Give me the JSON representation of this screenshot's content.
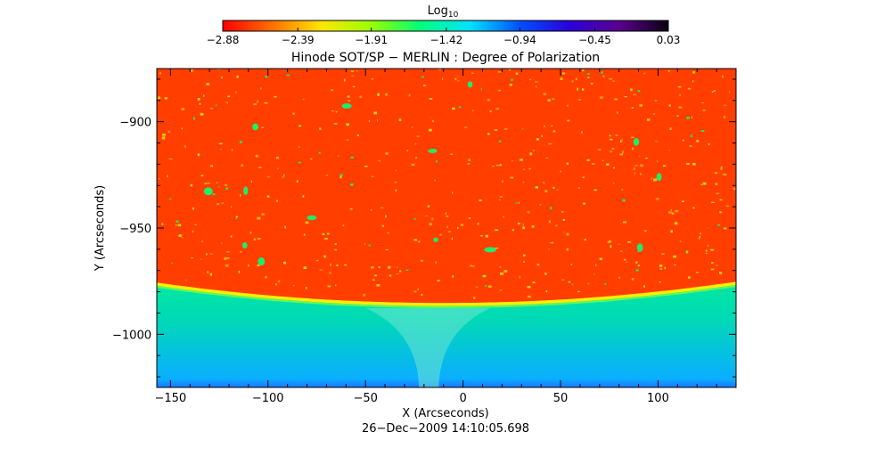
{
  "chart_data": {
    "type": "heatmap",
    "title": "Hinode SOT/SP − MERLIN : Degree of Polarization",
    "colorbar": {
      "label_main": "Log",
      "label_sub": "10",
      "min": -2.88,
      "max": 0.03,
      "tick_values": [
        -2.88,
        -2.39,
        -1.91,
        -1.42,
        -0.94,
        -0.45,
        0.03
      ],
      "tick_labels": [
        "−2.88",
        "−2.39",
        "−1.91",
        "−1.42",
        "−0.94",
        "−0.45",
        "0.03"
      ],
      "colormap": [
        "#ff0000",
        "#ff7000",
        "#ffe600",
        "#99ff00",
        "#00ff7a",
        "#00e1ff",
        "#0050ff",
        "#2a00dc",
        "#5a0090",
        "#0a0010"
      ]
    },
    "xlabel": "X (Arcseconds)",
    "ylabel": "Y (Arcseconds)",
    "xlim": [
      -157,
      140
    ],
    "ylim": [
      -1025,
      -875
    ],
    "x_ticks": [
      -150,
      -100,
      -50,
      0,
      50,
      100
    ],
    "x_tick_labels": [
      "−150",
      "−100",
      "−50",
      "0",
      "50",
      "100"
    ],
    "y_ticks": [
      -1000,
      -950,
      -900
    ],
    "y_tick_labels": [
      "−1000",
      "−950",
      "−900"
    ],
    "limb": {
      "y_at_x_center": -986,
      "y_at_edges": -976,
      "center_x": -10
    },
    "field": {
      "disk_value": -2.7,
      "limb_value": -1.9,
      "off_limb_value": -1.2,
      "outer_value": -0.8,
      "spot_values": [
        -2.0,
        -1.6
      ]
    },
    "timestamp": "26−Dec−2009 14:10:05.698"
  },
  "colors": {
    "disk": "#ff0000",
    "limb": "#ffee00",
    "off_limb": "#00e8a0",
    "outer": "#1a78ff"
  }
}
